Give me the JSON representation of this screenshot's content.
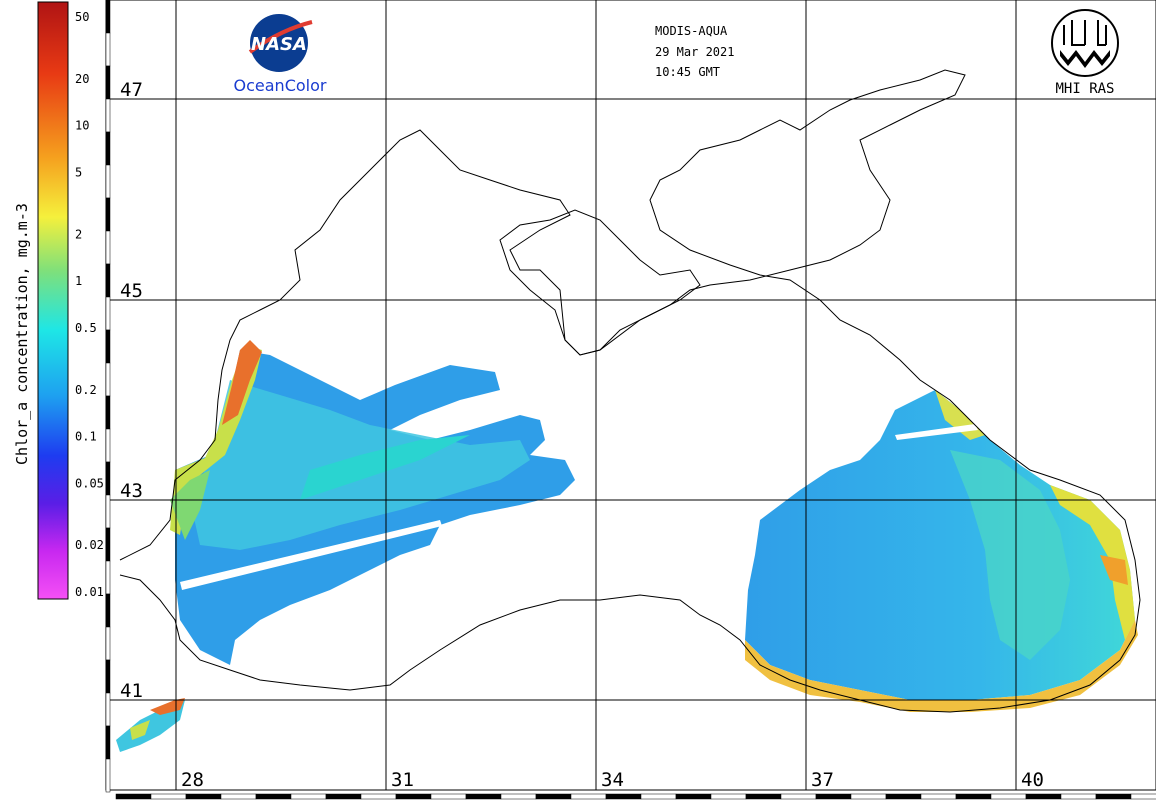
{
  "header": {
    "sensor": "MODIS-AQUA",
    "date": "29 Mar 2021",
    "time": "10:45 GMT",
    "nasa_logo_text": "NASA",
    "ocean_color_label": "OceanColor",
    "institute_label": "MHI RAS"
  },
  "colorbar": {
    "title": "Chlor_a concentration, mg.m-3",
    "ticks": [
      "50",
      "20",
      "10",
      "5",
      "2",
      "1",
      "0.5",
      "0.2",
      "0.1",
      "0.05",
      "0.02",
      "0.01"
    ]
  },
  "map": {
    "lat_labels": [
      "47",
      "45",
      "43",
      "41"
    ],
    "lon_labels": [
      "28",
      "31",
      "34",
      "37",
      "40"
    ],
    "colors": {
      "land": "#ffffff",
      "grid": "#000000",
      "low_chl": "#2f9ee8",
      "mid_chl": "#35d2e6",
      "high_chl": "#f5e63a",
      "very_high_chl": "#e8582c"
    }
  }
}
